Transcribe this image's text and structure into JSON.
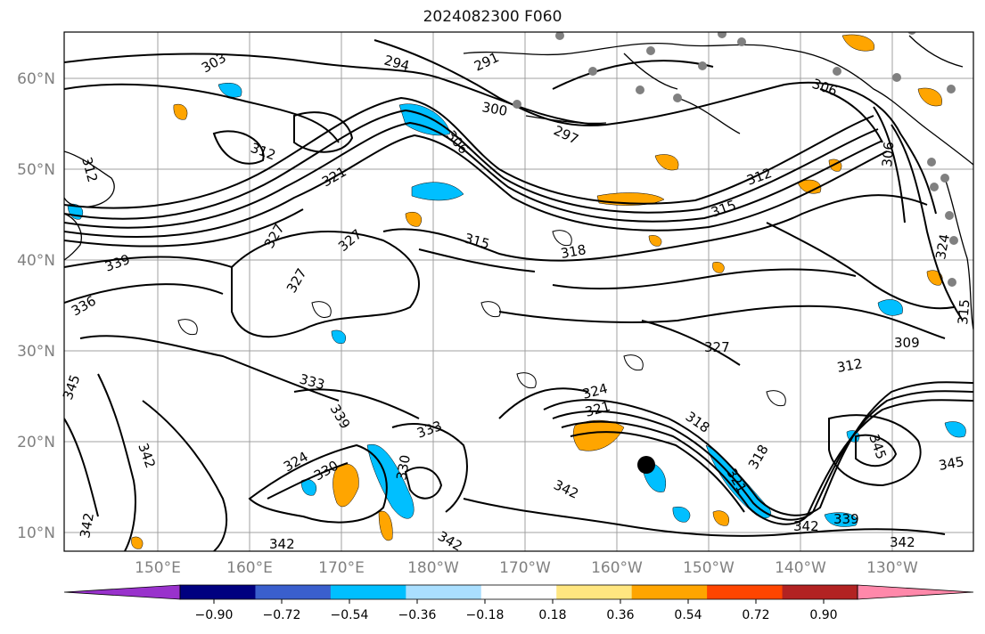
{
  "title": "2024082300 F060",
  "map": {
    "lon_ticks": [
      "150°E",
      "160°E",
      "170°E",
      "180°W",
      "170°W",
      "160°W",
      "150°W",
      "140°W",
      "130°W"
    ],
    "lat_ticks": [
      "10°N",
      "20°N",
      "30°N",
      "40°N",
      "50°N",
      "60°N"
    ],
    "contour_labels": [
      "303",
      "294",
      "291",
      "300",
      "297",
      "306",
      "312",
      "321",
      "312",
      "327",
      "315",
      "318",
      "324",
      "327",
      "327",
      "336",
      "339",
      "342",
      "333",
      "339",
      "315",
      "312",
      "312",
      "345",
      "345",
      "342",
      "342",
      "342",
      "333",
      "330",
      "324",
      "321",
      "318",
      "318",
      "321",
      "342",
      "339",
      "342",
      "309",
      "306",
      "306",
      "315",
      "345",
      "342",
      "327",
      "324",
      "330"
    ],
    "colors": {
      "land": "#000000",
      "contour": "#000000",
      "grid": "#a0a0a0",
      "tick_text": "#808080"
    }
  },
  "colorbar": {
    "tick_labels": [
      "−0.90",
      "−0.72",
      "−0.54",
      "−0.36",
      "−0.18",
      "0.18",
      "0.36",
      "0.54",
      "0.72",
      "0.90"
    ],
    "colors": [
      "#9932cc",
      "#000080",
      "#3a5fcd",
      "#00bfff",
      "#aadfff",
      "#ffffff",
      "#ffe680",
      "#ffa500",
      "#ff4500",
      "#b22222",
      "#ff88aa",
      "#ff88aa"
    ]
  }
}
